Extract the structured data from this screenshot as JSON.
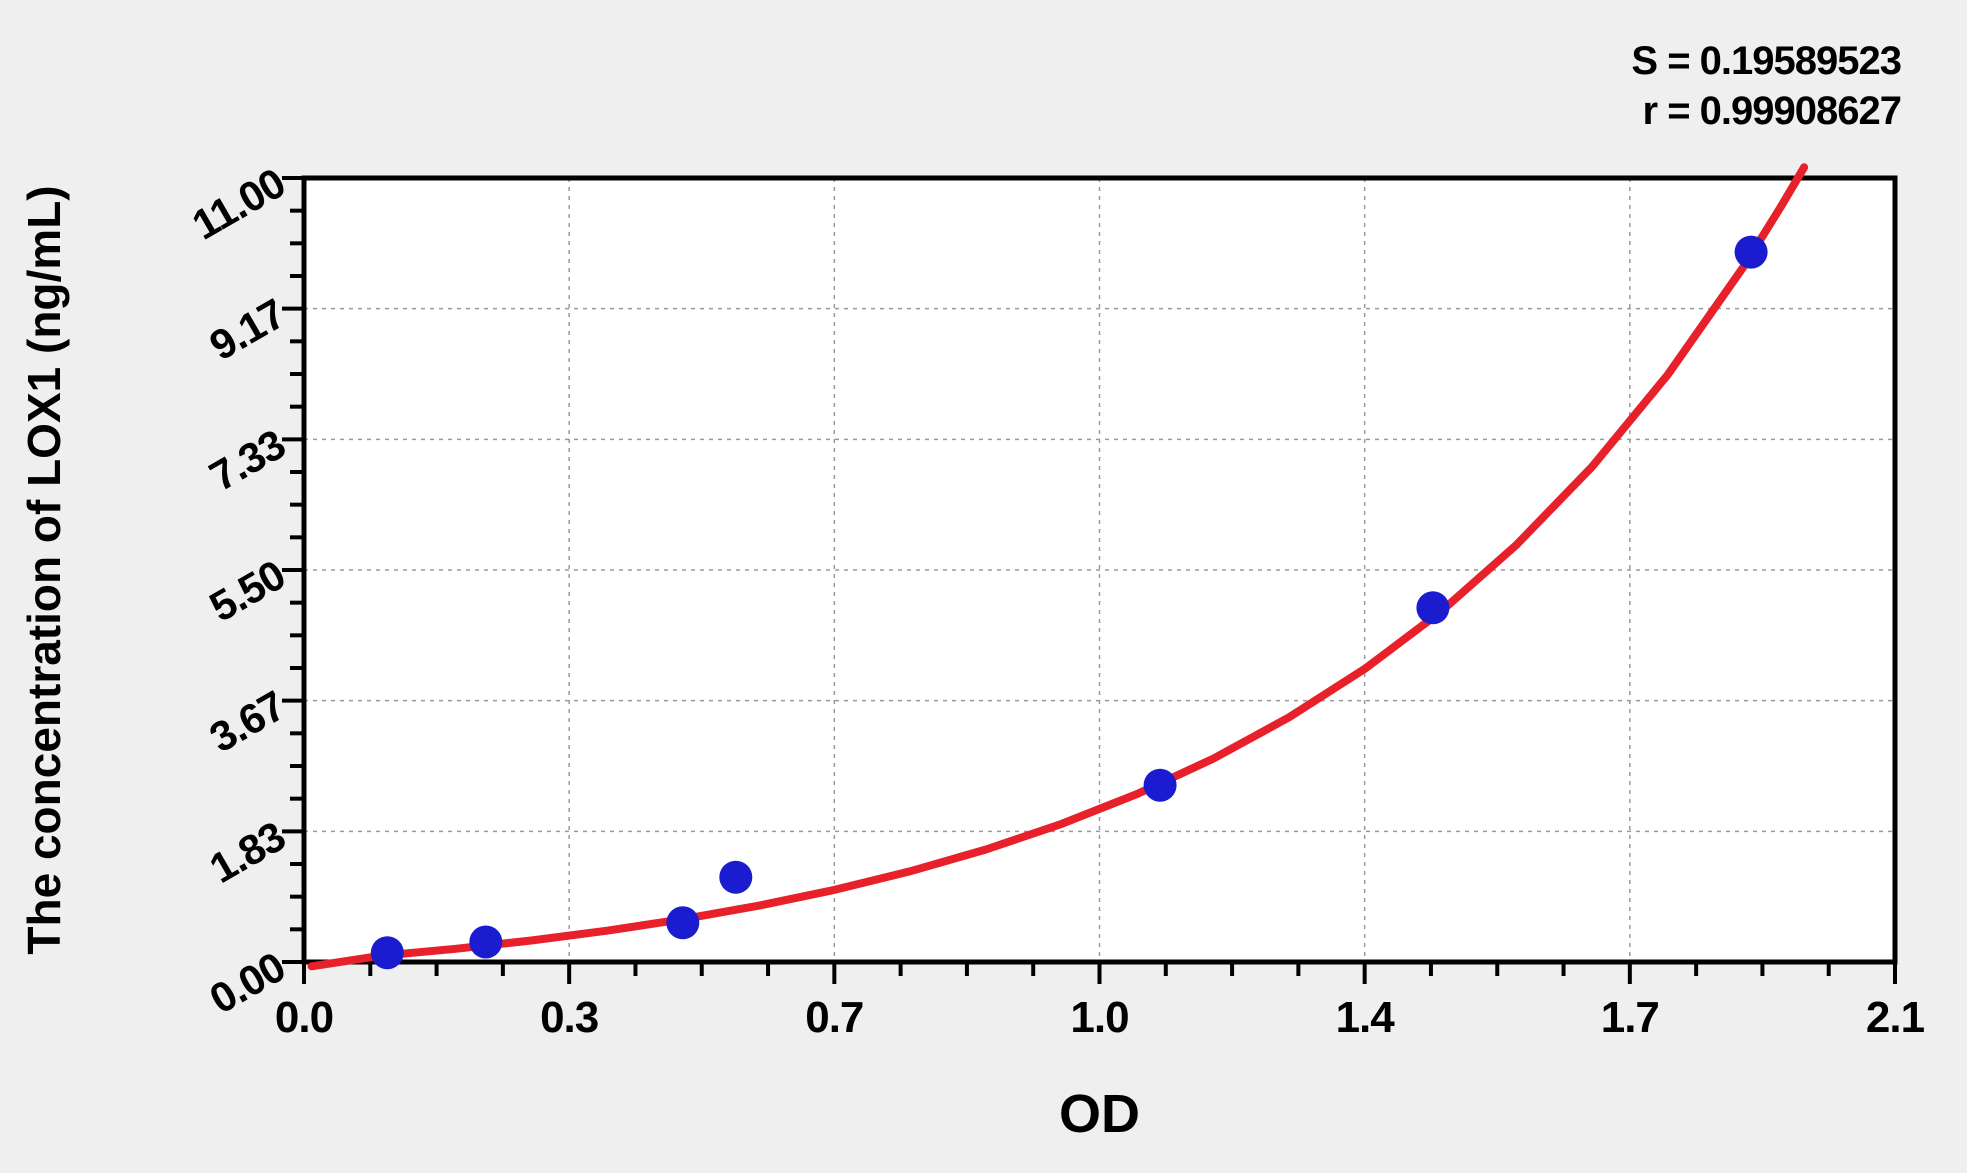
{
  "stats": {
    "s_line": "S = 0.19589523",
    "r_line": "r = 0.99908627"
  },
  "axes": {
    "x_title": "OD",
    "y_title": "The concentration of LOX1 (ng/mL)",
    "xlim": [
      0,
      2.1
    ],
    "ylim": [
      0,
      11
    ],
    "x_ticks": [
      {
        "value": 0.0,
        "label": "0.0"
      },
      {
        "value": 0.35,
        "label": "0.3"
      },
      {
        "value": 0.7,
        "label": "0.7"
      },
      {
        "value": 1.05,
        "label": "1.0"
      },
      {
        "value": 1.4,
        "label": "1.4"
      },
      {
        "value": 1.75,
        "label": "1.7"
      },
      {
        "value": 2.1,
        "label": "2.1"
      }
    ],
    "y_ticks": [
      {
        "value": 0.0,
        "label": "0.00"
      },
      {
        "value": 1.8333,
        "label": "1.83"
      },
      {
        "value": 3.6667,
        "label": "3.67"
      },
      {
        "value": 5.5,
        "label": "5.50"
      },
      {
        "value": 7.3333,
        "label": "7.33"
      },
      {
        "value": 9.1667,
        "label": "9.17"
      },
      {
        "value": 11.0,
        "label": "11.00"
      }
    ],
    "minor_per_major": 4,
    "grid": true
  },
  "chart_data": {
    "type": "scatter",
    "title": "",
    "xlabel": "OD",
    "ylabel": "The concentration of LOX1 (ng/mL)",
    "xlim": [
      0,
      2.1
    ],
    "ylim": [
      0,
      11
    ],
    "legend": "none",
    "annotations": [
      "S = 0.19589523",
      "r = 0.99908627"
    ],
    "points": [
      [
        0.11,
        0.13
      ],
      [
        0.24,
        0.28
      ],
      [
        0.5,
        0.55
      ],
      [
        0.57,
        1.19
      ],
      [
        1.13,
        2.48
      ],
      [
        1.49,
        4.97
      ],
      [
        1.91,
        9.96
      ]
    ],
    "fit_curve": {
      "model": "y = a*(exp(b*x)-1)",
      "a": 0.49,
      "b": 1.6,
      "samples": [
        [
          0.01,
          -0.06
        ],
        [
          0.1,
          0.085
        ],
        [
          0.2,
          0.185
        ],
        [
          0.3,
          0.302
        ],
        [
          0.4,
          0.439
        ],
        [
          0.5,
          0.6
        ],
        [
          0.6,
          0.79
        ],
        [
          0.7,
          1.012
        ],
        [
          0.8,
          1.272
        ],
        [
          0.9,
          1.578
        ],
        [
          1.0,
          1.937
        ],
        [
          1.1,
          2.358
        ],
        [
          1.2,
          2.852
        ],
        [
          1.3,
          3.432
        ],
        [
          1.4,
          4.113
        ],
        [
          1.5,
          4.911
        ],
        [
          1.6,
          5.849
        ],
        [
          1.7,
          6.948
        ],
        [
          1.8,
          8.239
        ],
        [
          1.9,
          9.754
        ],
        [
          1.95,
          10.61
        ],
        [
          1.98,
          11.15
        ]
      ]
    },
    "stats": {
      "S": "0.19589523",
      "r": "0.99908627"
    }
  },
  "colors": {
    "background": "#efefef",
    "plot_background": "#ffffff",
    "frame": "#000000",
    "gridline": "#9a9a9a",
    "point": "#1b1ccf",
    "curve": "#e8202a",
    "text": "#000000"
  }
}
